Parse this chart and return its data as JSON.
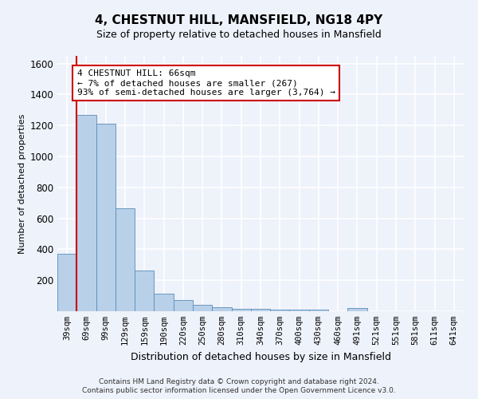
{
  "title": "4, CHESTNUT HILL, MANSFIELD, NG18 4PY",
  "subtitle": "Size of property relative to detached houses in Mansfield",
  "xlabel": "Distribution of detached houses by size in Mansfield",
  "ylabel": "Number of detached properties",
  "footer_line1": "Contains HM Land Registry data © Crown copyright and database right 2024.",
  "footer_line2": "Contains public sector information licensed under the Open Government Licence v3.0.",
  "categories": [
    "39sqm",
    "69sqm",
    "99sqm",
    "129sqm",
    "159sqm",
    "190sqm",
    "220sqm",
    "250sqm",
    "280sqm",
    "310sqm",
    "340sqm",
    "370sqm",
    "400sqm",
    "430sqm",
    "460sqm",
    "491sqm",
    "521sqm",
    "551sqm",
    "581sqm",
    "611sqm",
    "641sqm"
  ],
  "values": [
    370,
    1270,
    1210,
    665,
    265,
    115,
    70,
    40,
    25,
    18,
    15,
    12,
    10,
    8,
    0,
    20,
    0,
    0,
    0,
    0,
    0
  ],
  "bar_color": "#b8d0e8",
  "bar_edge_color": "#5b8db8",
  "highlight_color": "#cc0000",
  "annotation_text": "4 CHESTNUT HILL: 66sqm\n← 7% of detached houses are smaller (267)\n93% of semi-detached houses are larger (3,764) →",
  "annotation_box_color": "#ffffff",
  "annotation_box_edge_color": "#cc0000",
  "ylim": [
    0,
    1650
  ],
  "yticks": [
    0,
    200,
    400,
    600,
    800,
    1000,
    1200,
    1400,
    1600
  ],
  "bg_color": "#eef2fb",
  "grid_color": "#ffffff",
  "vline_color": "#cc0000"
}
